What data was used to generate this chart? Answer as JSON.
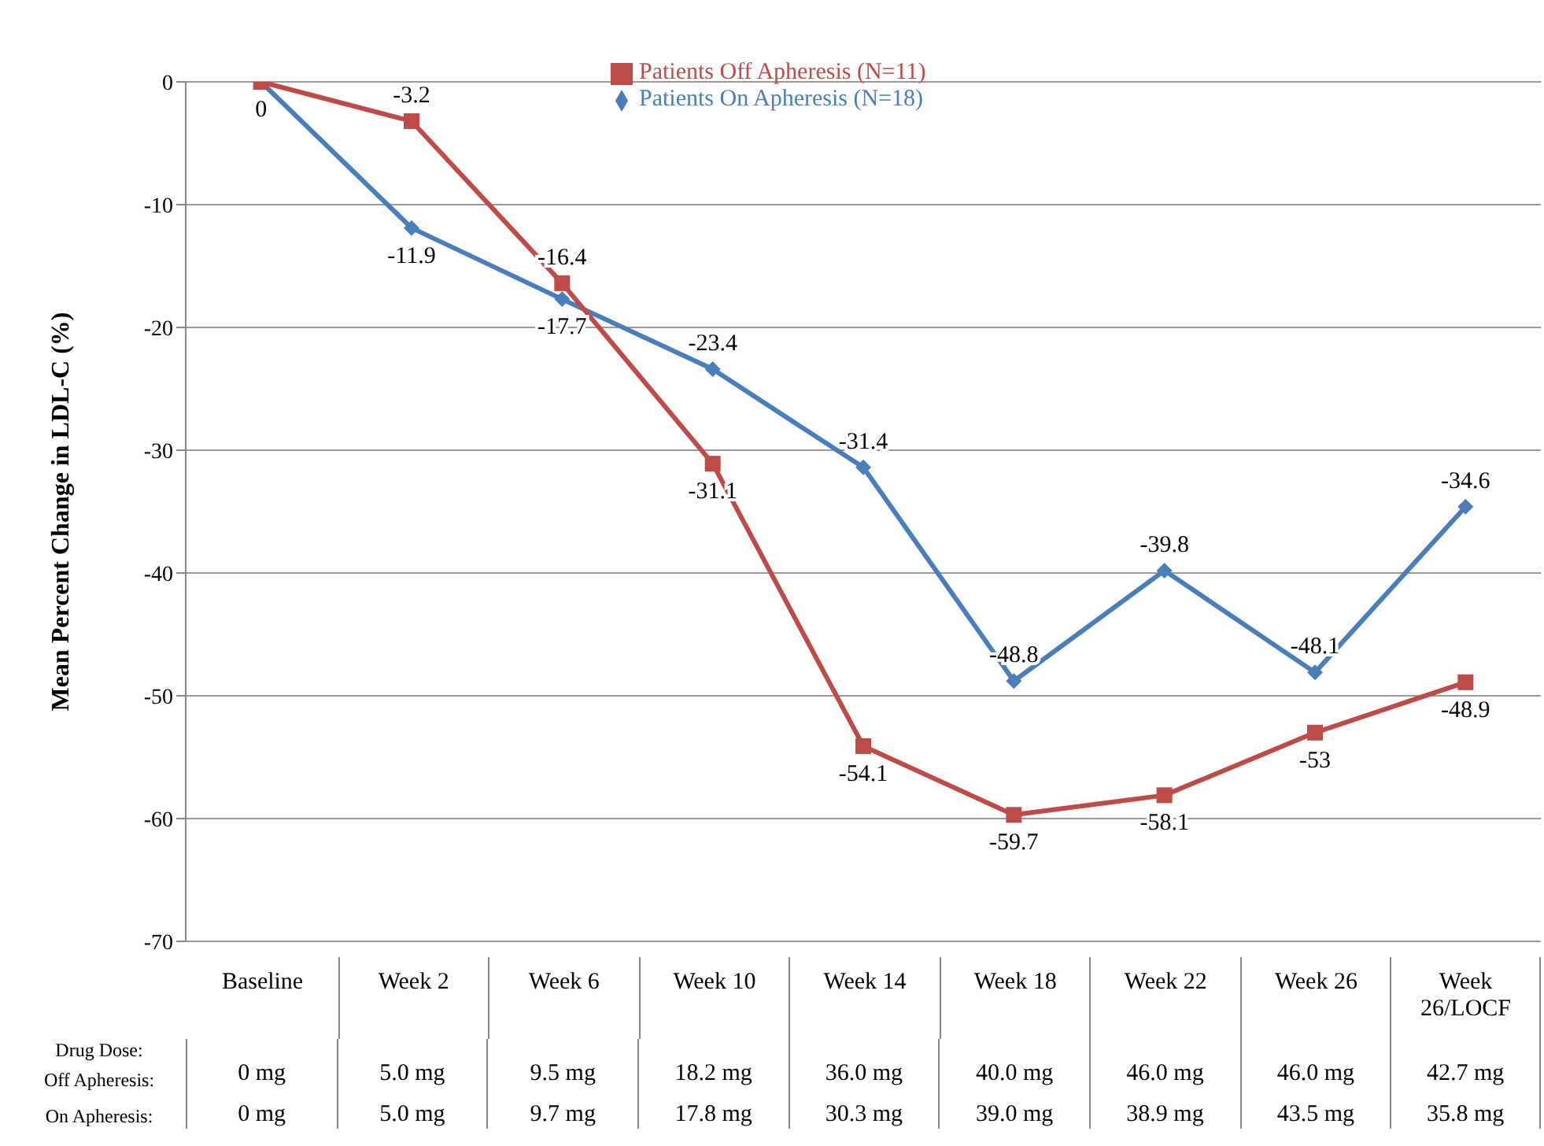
{
  "chart_data": {
    "type": "line",
    "ylabel": "Mean Percent Change in LDL-C (%)",
    "categories": [
      "Baseline",
      "Week 2",
      "Week 6",
      "Week 10",
      "Week 14",
      "Week 18",
      "Week 22",
      "Week 26",
      "Week 26/LOCF"
    ],
    "series": [
      {
        "name": "Patients On Apheresis (N=18)",
        "color": "#4a7ebb",
        "marker": "diamond",
        "values": [
          0,
          -11.9,
          -17.7,
          -23.4,
          -31.4,
          -48.8,
          -39.8,
          -48.1,
          -34.6
        ],
        "value_labels": [
          "0",
          "-11.9",
          "-17.7",
          "-23.4",
          "-31.4",
          "-48.8",
          "-39.8",
          "-48.1",
          "-34.6"
        ]
      },
      {
        "name": "Patients Off Apheresis (N=11)",
        "color": "#be4b48",
        "marker": "square",
        "values": [
          0,
          -3.2,
          -16.4,
          -31.1,
          -54.1,
          -59.7,
          -58.1,
          -53,
          -48.9
        ],
        "value_labels": [
          null,
          "-3.2",
          "-16.4",
          "-31.1",
          "-54.1",
          "-59.7",
          "-58.1",
          "-53",
          "-48.9"
        ]
      }
    ],
    "ylim": [
      -70,
      0
    ],
    "yticks": [
      0,
      -10,
      -20,
      -30,
      -40,
      -50,
      -60,
      -70
    ],
    "grid": "y",
    "legend": "top",
    "annotations": [
      "Drug Dose:",
      "Off Apheresis:",
      "0 mg",
      "5.0 mg",
      "9.5 mg",
      "18.2 mg",
      "36.0 mg",
      "40.0 mg",
      "46.0 mg",
      "46.0 mg",
      "42.7 mg",
      "On Apheresis:",
      "0 mg",
      "5.0 mg",
      "9.7 mg",
      "17.8 mg",
      "30.3 mg",
      "39.0 mg",
      "38.9 mg",
      "43.5 mg",
      "35.8 mg"
    ]
  }
}
